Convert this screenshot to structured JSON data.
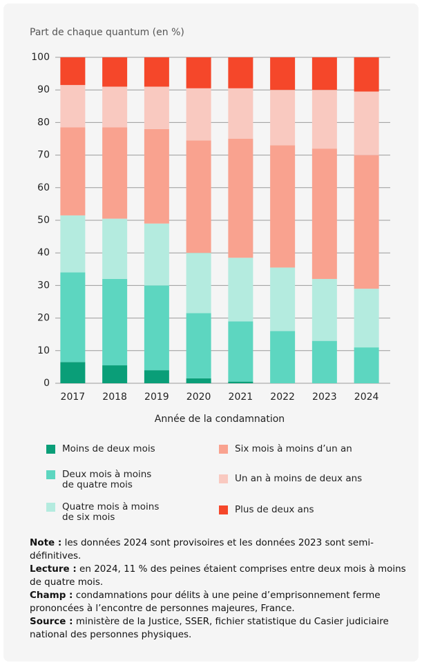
{
  "chart_data": {
    "type": "stacked_bar",
    "y_axis_label": "Part de chaque quantum (en %)",
    "x_axis_label": "Année de la condamnation",
    "categories": [
      "2017",
      "2018",
      "2019",
      "2020",
      "2021",
      "2022",
      "2023",
      "2024"
    ],
    "series": [
      {
        "name": "Moins de deux mois",
        "color": "#0a9e78",
        "values": [
          6.5,
          5.5,
          4,
          1.5,
          0.5,
          0,
          0,
          0
        ]
      },
      {
        "name": "Deux mois à moins de quatre mois",
        "color": "#5dd6c0",
        "values": [
          27.5,
          26.5,
          26,
          20,
          18.5,
          16,
          13,
          11
        ]
      },
      {
        "name": "Quatre mois à moins de six mois",
        "color": "#b4ebdf",
        "values": [
          17.5,
          18.5,
          19,
          18.5,
          19.5,
          19.5,
          19,
          18
        ]
      },
      {
        "name": "Six mois à moins d’un an",
        "color": "#f9a28f",
        "values": [
          27,
          28,
          29,
          34.5,
          36.5,
          37.5,
          40,
          41
        ]
      },
      {
        "name": "Un an à moins de deux ans",
        "color": "#f9c9c0",
        "values": [
          13,
          12.5,
          13,
          16,
          15.5,
          17,
          18,
          19.5
        ]
      },
      {
        "name": "Plus de deux ans",
        "color": "#f5472a",
        "values": [
          8.5,
          9,
          9,
          9.5,
          9.5,
          10,
          10,
          10.5
        ]
      }
    ],
    "ylim": [
      0,
      100
    ],
    "yticks": [
      0,
      10,
      20,
      30,
      40,
      50,
      60,
      70,
      80,
      90,
      100
    ],
    "grid": true
  },
  "notes": [
    {
      "label": "Note :",
      "text": "les données 2024 sont provisoires et les données 2023 sont semi-définitives."
    },
    {
      "label": "Lecture :",
      "text": "en 2024, 11 % des peines étaient comprises entre deux mois à moins de quatre mois."
    },
    {
      "label": "Champ :",
      "text": "condamnations pour délits à une peine d’emprisonnement ferme prononcées à l’encontre de personnes majeures, France."
    },
    {
      "label": "Source :",
      "text": "ministère de la Justice, SSER, fichier statistique du Casier judiciaire national des personnes physiques."
    }
  ]
}
